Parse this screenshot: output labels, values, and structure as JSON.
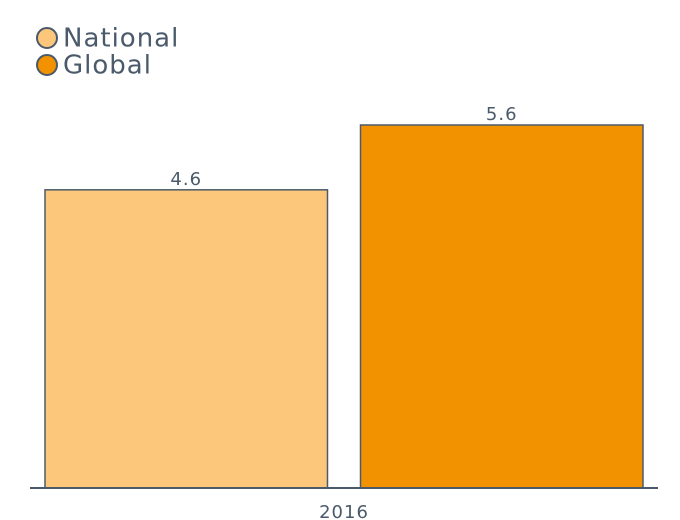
{
  "chart_data": {
    "type": "bar",
    "categories": [
      "2016"
    ],
    "series": [
      {
        "name": "National",
        "color": "#fcc77b",
        "values": [
          4.6
        ]
      },
      {
        "name": "Global",
        "color": "#f39200",
        "values": [
          5.6
        ]
      }
    ],
    "legend": "top-left"
  }
}
